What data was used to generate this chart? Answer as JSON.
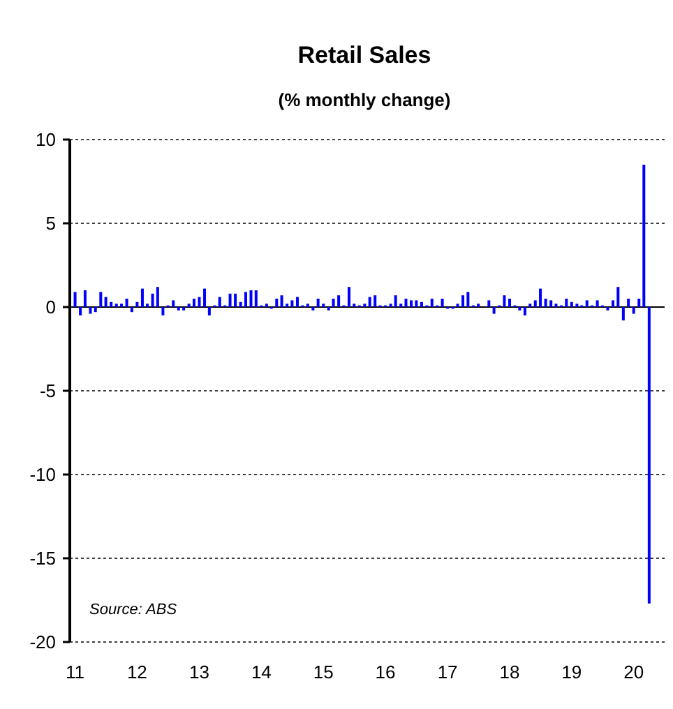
{
  "chart_data": {
    "type": "bar",
    "title": "Retail Sales",
    "subtitle": "(% monthly change)",
    "x": [
      "2011-01",
      "2011-02",
      "2011-03",
      "2011-04",
      "2011-05",
      "2011-06",
      "2011-07",
      "2011-08",
      "2011-09",
      "2011-10",
      "2011-11",
      "2011-12",
      "2012-01",
      "2012-02",
      "2012-03",
      "2012-04",
      "2012-05",
      "2012-06",
      "2012-07",
      "2012-08",
      "2012-09",
      "2012-10",
      "2012-11",
      "2012-12",
      "2013-01",
      "2013-02",
      "2013-03",
      "2013-04",
      "2013-05",
      "2013-06",
      "2013-07",
      "2013-08",
      "2013-09",
      "2013-10",
      "2013-11",
      "2013-12",
      "2014-01",
      "2014-02",
      "2014-03",
      "2014-04",
      "2014-05",
      "2014-06",
      "2014-07",
      "2014-08",
      "2014-09",
      "2014-10",
      "2014-11",
      "2014-12",
      "2015-01",
      "2015-02",
      "2015-03",
      "2015-04",
      "2015-05",
      "2015-06",
      "2015-07",
      "2015-08",
      "2015-09",
      "2015-10",
      "2015-11",
      "2015-12",
      "2016-01",
      "2016-02",
      "2016-03",
      "2016-04",
      "2016-05",
      "2016-06",
      "2016-07",
      "2016-08",
      "2016-09",
      "2016-10",
      "2016-11",
      "2016-12",
      "2017-01",
      "2017-02",
      "2017-03",
      "2017-04",
      "2017-05",
      "2017-06",
      "2017-07",
      "2017-08",
      "2017-09",
      "2017-10",
      "2017-11",
      "2017-12",
      "2018-01",
      "2018-02",
      "2018-03",
      "2018-04",
      "2018-05",
      "2018-06",
      "2018-07",
      "2018-08",
      "2018-09",
      "2018-10",
      "2018-11",
      "2018-12",
      "2019-01",
      "2019-02",
      "2019-03",
      "2019-04",
      "2019-05",
      "2019-06",
      "2019-07",
      "2019-08",
      "2019-09",
      "2019-10",
      "2019-11",
      "2019-12",
      "2020-01",
      "2020-02",
      "2020-03",
      "2020-04"
    ],
    "series": [
      {
        "color": "#0000ff",
        "values": [
          0.9,
          -0.5,
          1.0,
          -0.4,
          -0.3,
          0.9,
          0.6,
          0.3,
          0.2,
          0.2,
          0.5,
          -0.3,
          0.3,
          1.1,
          0.2,
          0.8,
          1.2,
          -0.5,
          0.1,
          0.4,
          -0.2,
          -0.2,
          0.2,
          0.5,
          0.6,
          1.1,
          -0.5,
          0.1,
          0.6,
          0.1,
          0.8,
          0.8,
          0.3,
          0.9,
          1.0,
          1.0,
          0.1,
          0.2,
          -0.1,
          0.5,
          0.7,
          0.2,
          0.4,
          0.6,
          0.1,
          0.2,
          -0.2,
          0.5,
          0.2,
          -0.2,
          0.5,
          0.7,
          0.1,
          1.2,
          0.2,
          0.1,
          0.2,
          0.6,
          0.7,
          0.1,
          0.1,
          0.2,
          0.7,
          0.2,
          0.5,
          0.4,
          0.4,
          0.3,
          0.1,
          0.5,
          0.1,
          0.5,
          -0.1,
          -0.1,
          0.2,
          0.7,
          0.9,
          0.1,
          0.2,
          0.0,
          0.4,
          -0.4,
          0.1,
          0.7,
          0.5,
          0.1,
          -0.2,
          -0.5,
          0.2,
          0.4,
          1.1,
          0.5,
          0.4,
          0.2,
          0.1,
          0.5,
          0.3,
          0.2,
          0.1,
          0.4,
          0.1,
          0.4,
          0.1,
          -0.2,
          0.4,
          1.2,
          -0.8,
          0.5,
          -0.4,
          0.5,
          8.5,
          -17.7
        ]
      }
    ],
    "xlim": [
      "2010-12",
      "2020-07"
    ],
    "xticks": [
      {
        "value": "2011-01",
        "label": "11"
      },
      {
        "value": "2012-01",
        "label": "12"
      },
      {
        "value": "2013-01",
        "label": "13"
      },
      {
        "value": "2014-01",
        "label": "14"
      },
      {
        "value": "2015-01",
        "label": "15"
      },
      {
        "value": "2016-01",
        "label": "16"
      },
      {
        "value": "2017-01",
        "label": "17"
      },
      {
        "value": "2018-01",
        "label": "18"
      },
      {
        "value": "2019-01",
        "label": "19"
      },
      {
        "value": "2020-01",
        "label": "20"
      }
    ],
    "ylim": [
      -20,
      10
    ],
    "yticks": [
      -20,
      -15,
      -10,
      -5,
      0,
      5,
      10
    ],
    "grid": "y",
    "annotations": [
      "Source: ABS"
    ]
  }
}
